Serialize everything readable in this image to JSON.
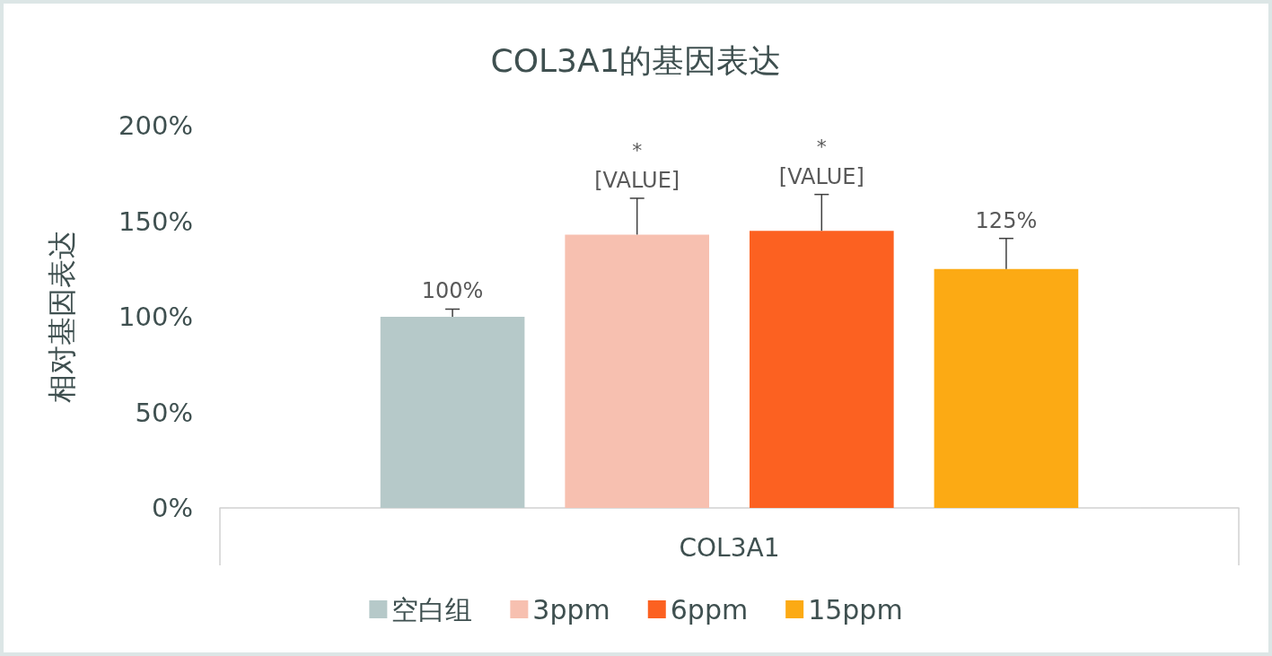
{
  "chart_data": {
    "type": "bar",
    "title": "COL3A1的基因表达",
    "ylabel": "相对基因表达",
    "categories": [
      "COL3A1"
    ],
    "series": [
      {
        "name": "空白组",
        "color": "#b6c9c9",
        "values": [
          100
        ],
        "errors": [
          [
            100,
            104
          ]
        ],
        "value_labels": [
          "100%"
        ]
      },
      {
        "name": "3ppm",
        "color": "#f7c0b0",
        "values": [
          143
        ],
        "errors": [
          [
            143,
            162
          ]
        ],
        "value_labels": [
          "[VALUE]"
        ]
      },
      {
        "name": "6ppm",
        "color": "#fc6121",
        "values": [
          145
        ],
        "errors": [
          [
            145,
            164
          ]
        ],
        "value_labels": [
          "[VALUE]"
        ]
      },
      {
        "name": "15ppm",
        "color": "#fcaa14",
        "values": [
          125
        ],
        "errors": [
          [
            125,
            141
          ]
        ],
        "value_labels": [
          "125%"
        ]
      }
    ],
    "annotations": [
      "*",
      "*"
    ],
    "ylim": [
      0,
      200
    ],
    "yticks": [
      {
        "value": 0,
        "label": "0%"
      },
      {
        "value": 50,
        "label": "50%"
      },
      {
        "value": 100,
        "label": "100%"
      },
      {
        "value": 150,
        "label": "150%"
      },
      {
        "value": 200,
        "label": "200%"
      }
    ],
    "grid": false,
    "legend": "bottom"
  }
}
